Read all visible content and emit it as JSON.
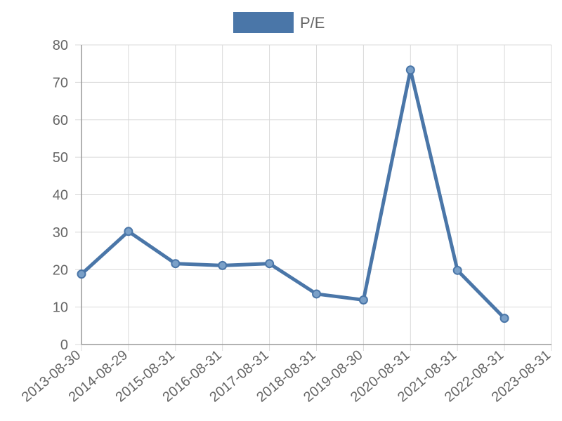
{
  "chart_data": {
    "type": "line",
    "x": [
      "2013-08-30",
      "2014-08-29",
      "2015-08-31",
      "2016-08-31",
      "2017-08-31",
      "2018-08-31",
      "2019-08-30",
      "2020-08-31",
      "2021-08-31",
      "2022-08-31",
      "2023-08-31"
    ],
    "series": [
      {
        "name": "P/E",
        "values": [
          18.8,
          30.2,
          21.6,
          21.1,
          21.6,
          13.5,
          11.9,
          73.3,
          19.8,
          7.0,
          null
        ]
      }
    ],
    "yticks": [
      0,
      10,
      20,
      30,
      40,
      50,
      60,
      70,
      80
    ],
    "ylim": [
      0,
      80
    ],
    "grid": true,
    "legend_position": "top-center",
    "series_color": "#4a76a8"
  }
}
